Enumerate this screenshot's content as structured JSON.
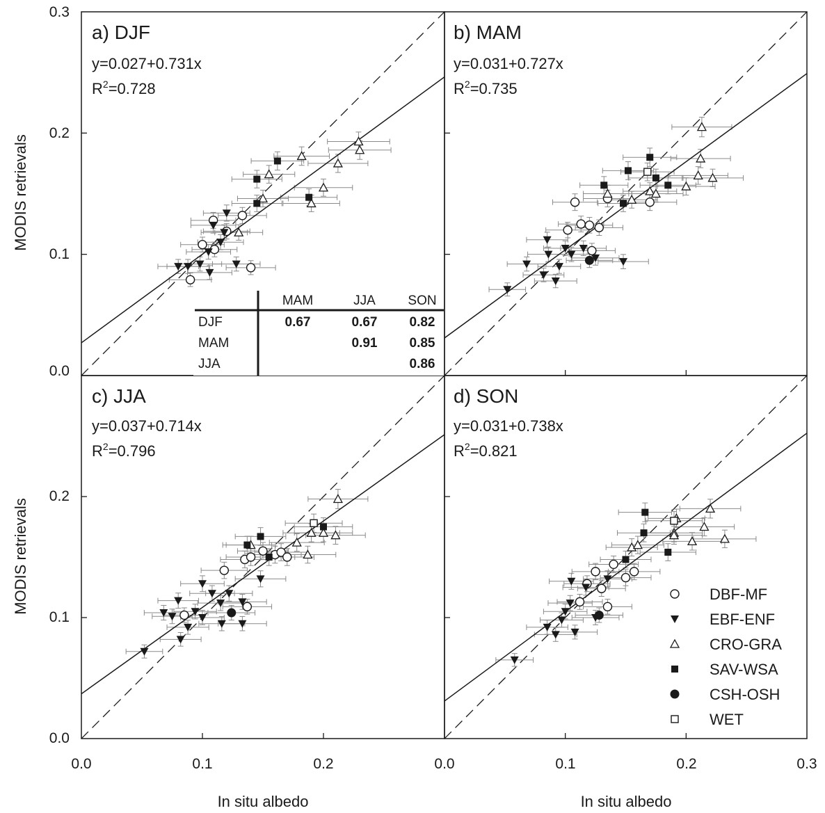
{
  "figure": {
    "x_axis_label": "In situ albedo",
    "y_axis_label": "MODIS retrievals",
    "x_ticks_left": [
      "0.0",
      "0.1",
      "0.2"
    ],
    "x_ticks_right": [
      "0.0",
      "0.1",
      "0.2",
      "0.3"
    ],
    "y_ticks_top": [
      "0.0",
      "0.1",
      "0.2",
      "0.3"
    ],
    "y_ticks_bottom": [
      "0.0",
      "0.1",
      "0.2"
    ]
  },
  "legend": [
    {
      "label": "DBF-MF",
      "marker": "circle-open"
    },
    {
      "label": "EBF-ENF",
      "marker": "triangle-down-filled"
    },
    {
      "label": "CRO-GRA",
      "marker": "triangle-up-open"
    },
    {
      "label": "SAV-WSA",
      "marker": "square-filled"
    },
    {
      "label": "CSH-OSH",
      "marker": "circle-filled"
    },
    {
      "label": "WET",
      "marker": "square-open"
    }
  ],
  "correlation_table": {
    "col_headers": [
      "MAM",
      "JJA",
      "SON"
    ],
    "rows": [
      {
        "label": "DJF",
        "values": [
          "0.67",
          "0.67",
          "0.82"
        ]
      },
      {
        "label": "MAM",
        "values": [
          "",
          "0.91",
          "0.85"
        ]
      },
      {
        "label": "JJA",
        "values": [
          "",
          "",
          "0.86"
        ]
      }
    ]
  },
  "chart_data": [
    {
      "type": "scatter",
      "title": "a) DJF",
      "equation": "y=0.027+0.731x",
      "r2_label": "R",
      "r2_sup": "2",
      "r2_value": "=0.728",
      "xlabel": "In situ albedo",
      "ylabel": "MODIS retrievals",
      "xlim": [
        0.0,
        0.3
      ],
      "ylim": [
        0.0,
        0.3
      ],
      "regression": {
        "intercept": 0.027,
        "slope": 0.731
      },
      "one_to_one": true,
      "series": [
        {
          "name": "DBF-MF",
          "marker": "circle-open",
          "points": [
            [
              0.09,
              0.079
            ],
            [
              0.1,
              0.108
            ],
            [
              0.109,
              0.128
            ],
            [
              0.12,
              0.119
            ],
            [
              0.133,
              0.132
            ],
            [
              0.14,
              0.089
            ],
            [
              0.11,
              0.104
            ]
          ]
        },
        {
          "name": "EBF-ENF",
          "marker": "triangle-down-filled",
          "points": [
            [
              0.08,
              0.09
            ],
            [
              0.088,
              0.09
            ],
            [
              0.098,
              0.092
            ],
            [
              0.106,
              0.085
            ],
            [
              0.109,
              0.124
            ],
            [
              0.12,
              0.134
            ],
            [
              0.115,
              0.11
            ],
            [
              0.128,
              0.092
            ],
            [
              0.105,
              0.102
            ],
            [
              0.118,
              0.118
            ]
          ]
        },
        {
          "name": "CRO-GRA",
          "marker": "triangle-up-open",
          "points": [
            [
              0.13,
              0.118
            ],
            [
              0.15,
              0.146
            ],
            [
              0.155,
              0.166
            ],
            [
              0.182,
              0.181
            ],
            [
              0.19,
              0.142
            ],
            [
              0.2,
              0.155
            ],
            [
              0.212,
              0.175
            ],
            [
              0.229,
              0.193
            ],
            [
              0.23,
              0.186
            ]
          ]
        },
        {
          "name": "SAV-WSA",
          "marker": "square-filled",
          "points": [
            [
              0.145,
              0.142
            ],
            [
              0.145,
              0.162
            ],
            [
              0.162,
              0.177
            ],
            [
              0.188,
              0.147
            ]
          ]
        },
        {
          "name": "CSH-OSH",
          "marker": "circle-filled",
          "points": []
        },
        {
          "name": "WET",
          "marker": "square-open",
          "points": []
        }
      ]
    },
    {
      "type": "scatter",
      "title": "b) MAM",
      "equation": "y=0.031+0.727x",
      "r2_label": "R",
      "r2_sup": "2",
      "r2_value": "=0.735",
      "xlabel": "In situ albedo",
      "ylabel": "MODIS retrievals",
      "xlim": [
        0.0,
        0.3
      ],
      "ylim": [
        0.0,
        0.3
      ],
      "regression": {
        "intercept": 0.031,
        "slope": 0.727
      },
      "one_to_one": true,
      "series": [
        {
          "name": "DBF-MF",
          "marker": "circle-open",
          "points": [
            [
              0.102,
              0.12
            ],
            [
              0.108,
              0.143
            ],
            [
              0.113,
              0.125
            ],
            [
              0.12,
              0.124
            ],
            [
              0.128,
              0.122
            ],
            [
              0.135,
              0.146
            ],
            [
              0.122,
              0.103
            ],
            [
              0.17,
              0.143
            ]
          ]
        },
        {
          "name": "EBF-ENF",
          "marker": "triangle-down-filled",
          "points": [
            [
              0.052,
              0.071
            ],
            [
              0.068,
              0.092
            ],
            [
              0.082,
              0.083
            ],
            [
              0.086,
              0.1
            ],
            [
              0.092,
              0.078
            ],
            [
              0.095,
              0.09
            ],
            [
              0.105,
              0.1
            ],
            [
              0.115,
              0.105
            ],
            [
              0.125,
              0.097
            ],
            [
              0.148,
              0.094
            ],
            [
              0.085,
              0.112
            ],
            [
              0.1,
              0.105
            ]
          ]
        },
        {
          "name": "CRO-GRA",
          "marker": "triangle-up-open",
          "points": [
            [
              0.135,
              0.15
            ],
            [
              0.155,
              0.145
            ],
            [
              0.17,
              0.152
            ],
            [
              0.175,
              0.15
            ],
            [
              0.2,
              0.156
            ],
            [
              0.21,
              0.165
            ],
            [
              0.212,
              0.179
            ],
            [
              0.213,
              0.205
            ],
            [
              0.222,
              0.163
            ]
          ]
        },
        {
          "name": "SAV-WSA",
          "marker": "square-filled",
          "points": [
            [
              0.132,
              0.157
            ],
            [
              0.148,
              0.142
            ],
            [
              0.152,
              0.169
            ],
            [
              0.17,
              0.18
            ],
            [
              0.175,
              0.163
            ],
            [
              0.185,
              0.157
            ]
          ]
        },
        {
          "name": "CSH-OSH",
          "marker": "circle-filled",
          "points": [
            [
              0.12,
              0.095
            ]
          ]
        },
        {
          "name": "WET",
          "marker": "square-open",
          "points": [
            [
              0.168,
              0.168
            ]
          ]
        }
      ]
    },
    {
      "type": "scatter",
      "title": "c) JJA",
      "equation": "y=0.037+0.714x",
      "r2_label": "R",
      "r2_sup": "2",
      "r2_value": "=0.796",
      "xlabel": "In situ albedo",
      "ylabel": "MODIS retrievals",
      "xlim": [
        0.0,
        0.3
      ],
      "ylim": [
        0.0,
        0.3
      ],
      "regression": {
        "intercept": 0.037,
        "slope": 0.714
      },
      "one_to_one": true,
      "series": [
        {
          "name": "DBF-MF",
          "marker": "circle-open",
          "points": [
            [
              0.085,
              0.102
            ],
            [
              0.118,
              0.139
            ],
            [
              0.135,
              0.148
            ],
            [
              0.14,
              0.15
            ],
            [
              0.15,
              0.155
            ],
            [
              0.16,
              0.152
            ],
            [
              0.165,
              0.154
            ],
            [
              0.17,
              0.15
            ],
            [
              0.137,
              0.109
            ]
          ]
        },
        {
          "name": "EBF-ENF",
          "marker": "triangle-down-filled",
          "points": [
            [
              0.052,
              0.072
            ],
            [
              0.068,
              0.104
            ],
            [
              0.075,
              0.101
            ],
            [
              0.08,
              0.114
            ],
            [
              0.082,
              0.082
            ],
            [
              0.088,
              0.092
            ],
            [
              0.094,
              0.105
            ],
            [
              0.1,
              0.128
            ],
            [
              0.108,
              0.12
            ],
            [
              0.115,
              0.112
            ],
            [
              0.122,
              0.12
            ],
            [
              0.1,
              0.1
            ],
            [
              0.116,
              0.095
            ],
            [
              0.133,
              0.095
            ],
            [
              0.148,
              0.132
            ],
            [
              0.133,
              0.113
            ]
          ]
        },
        {
          "name": "CRO-GRA",
          "marker": "triangle-up-open",
          "points": [
            [
              0.14,
              0.16
            ],
            [
              0.178,
              0.162
            ],
            [
              0.187,
              0.152
            ],
            [
              0.19,
              0.17
            ],
            [
              0.2,
              0.17
            ],
            [
              0.21,
              0.168
            ],
            [
              0.212,
              0.198
            ]
          ]
        },
        {
          "name": "SAV-WSA",
          "marker": "square-filled",
          "points": [
            [
              0.137,
              0.16
            ],
            [
              0.148,
              0.167
            ],
            [
              0.155,
              0.15
            ],
            [
              0.2,
              0.175
            ]
          ]
        },
        {
          "name": "CSH-OSH",
          "marker": "circle-filled",
          "points": [
            [
              0.124,
              0.104
            ]
          ]
        },
        {
          "name": "WET",
          "marker": "square-open",
          "points": [
            [
              0.192,
              0.178
            ]
          ]
        }
      ]
    },
    {
      "type": "scatter",
      "title": "d) SON",
      "equation": "y=0.031+0.738x",
      "r2_label": "R",
      "r2_sup": "2",
      "r2_value": "=0.821",
      "xlabel": "In situ albedo",
      "ylabel": "MODIS retrievals",
      "xlim": [
        0.0,
        0.3
      ],
      "ylim": [
        0.0,
        0.3
      ],
      "regression": {
        "intercept": 0.031,
        "slope": 0.738
      },
      "one_to_one": true,
      "series": [
        {
          "name": "DBF-MF",
          "marker": "circle-open",
          "points": [
            [
              0.112,
              0.113
            ],
            [
              0.118,
              0.128
            ],
            [
              0.125,
              0.138
            ],
            [
              0.13,
              0.124
            ],
            [
              0.14,
              0.144
            ],
            [
              0.15,
              0.133
            ],
            [
              0.157,
              0.138
            ],
            [
              0.135,
              0.109
            ]
          ]
        },
        {
          "name": "EBF-ENF",
          "marker": "triangle-down-filled",
          "points": [
            [
              0.058,
              0.065
            ],
            [
              0.085,
              0.092
            ],
            [
              0.092,
              0.086
            ],
            [
              0.097,
              0.098
            ],
            [
              0.1,
              0.105
            ],
            [
              0.104,
              0.112
            ],
            [
              0.108,
              0.088
            ],
            [
              0.117,
              0.125
            ],
            [
              0.125,
              0.1
            ],
            [
              0.135,
              0.132
            ],
            [
              0.105,
              0.13
            ]
          ]
        },
        {
          "name": "CRO-GRA",
          "marker": "triangle-up-open",
          "points": [
            [
              0.155,
              0.158
            ],
            [
              0.16,
              0.16
            ],
            [
              0.19,
              0.17
            ],
            [
              0.192,
              0.182
            ],
            [
              0.205,
              0.163
            ],
            [
              0.215,
              0.175
            ],
            [
              0.22,
              0.19
            ],
            [
              0.232,
              0.165
            ],
            [
              0.19,
              0.168
            ]
          ]
        },
        {
          "name": "SAV-WSA",
          "marker": "square-filled",
          "points": [
            [
              0.15,
              0.148
            ],
            [
              0.165,
              0.17
            ],
            [
              0.166,
              0.187
            ],
            [
              0.185,
              0.154
            ]
          ]
        },
        {
          "name": "CSH-OSH",
          "marker": "circle-filled",
          "points": [
            [
              0.128,
              0.102
            ]
          ]
        },
        {
          "name": "WET",
          "marker": "square-open",
          "points": [
            [
              0.19,
              0.18
            ]
          ]
        }
      ]
    }
  ]
}
